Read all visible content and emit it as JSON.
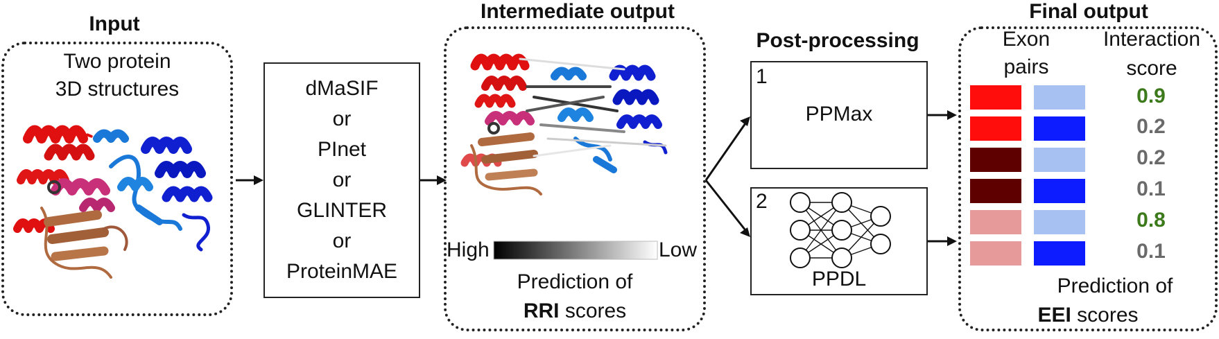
{
  "input": {
    "title": "Input",
    "line1": "Two protein",
    "line2": "3D structures"
  },
  "methods": [
    "dMaSIF",
    "or",
    "PInet",
    "or",
    "GLINTER",
    "or",
    "ProteinMAE"
  ],
  "intermediate": {
    "title": "Intermediate output",
    "scale_high": "High",
    "scale_low": "Low",
    "caption_line1": "Prediction of",
    "caption_bold": "RRI",
    "caption_rest": " scores"
  },
  "postprocessing": {
    "title": "Post-processing",
    "box1_number": "1",
    "box1_label": "PPMax",
    "box2_number": "2",
    "box2_label": "PPDL"
  },
  "final": {
    "title": "Final output",
    "col1_line1": "Exon",
    "col1_line2": "pairs",
    "col2_line1": "Interaction",
    "col2_line2": "score",
    "caption_line1": "Prediction of",
    "caption_bold": "EEI",
    "caption_rest": " scores",
    "rows": [
      {
        "left": "#ff0d0d",
        "right": "#a7c1f2",
        "score": "0.9",
        "score_color": "#3d7a1c"
      },
      {
        "left": "#ff0d0d",
        "right": "#0d1bff",
        "score": "0.2",
        "score_color": "#6a6a6a"
      },
      {
        "left": "#5e0000",
        "right": "#a7c1f2",
        "score": "0.2",
        "score_color": "#6a6a6a"
      },
      {
        "left": "#5e0000",
        "right": "#0d1bff",
        "score": "0.1",
        "score_color": "#6a6a6a"
      },
      {
        "left": "#e69a9a",
        "right": "#a7c1f2",
        "score": "0.8",
        "score_color": "#3d7a1c"
      },
      {
        "left": "#e69a9a",
        "right": "#0d1bff",
        "score": "0.1",
        "score_color": "#6a6a6a"
      }
    ]
  },
  "colors": {
    "protein_red": "#e01010",
    "protein_magenta": "#c8307a",
    "protein_brown": "#b06a40",
    "protein_blue": "#1020d0",
    "protein_lightblue": "#1a78d8"
  }
}
